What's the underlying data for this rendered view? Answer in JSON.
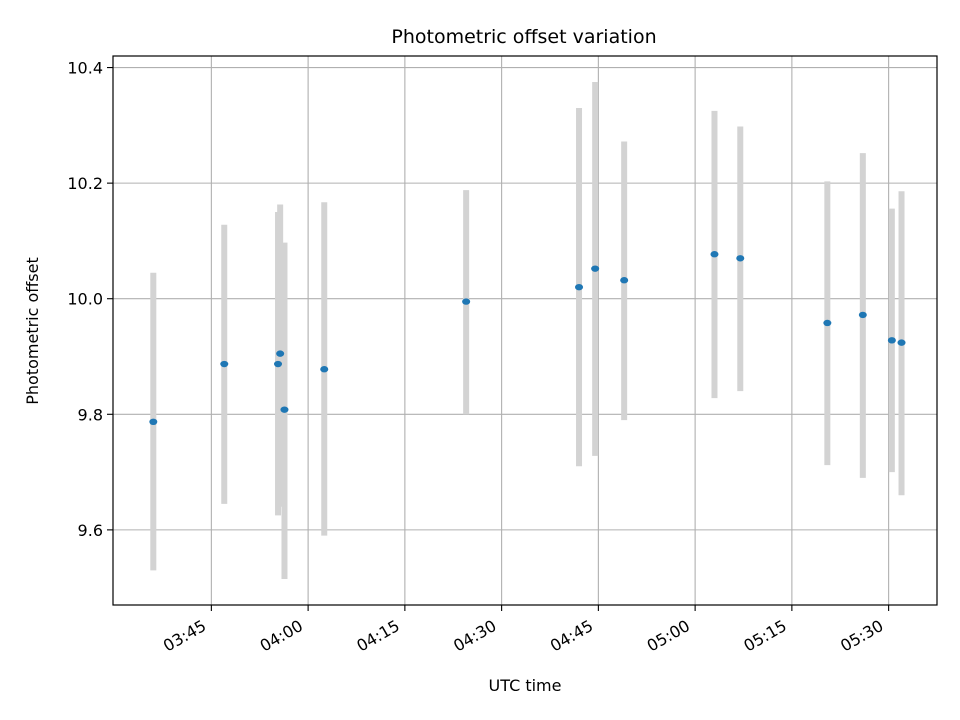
{
  "chart_data": {
    "type": "scatter",
    "title": "Photometric offset variation",
    "xlabel": "UTC time",
    "ylabel": "Photometric offset",
    "x_axis_kind": "time",
    "xlim": [
      "03:29:45",
      "05:37:30"
    ],
    "ylim": [
      9.47,
      10.42
    ],
    "x_ticks": [
      "03:45",
      "04:00",
      "04:15",
      "04:30",
      "04:45",
      "05:00",
      "05:15",
      "05:30"
    ],
    "y_ticks": [
      9.6,
      9.8,
      10.0,
      10.2,
      10.4
    ],
    "y_tick_labels": [
      "9.6",
      "9.8",
      "10.0",
      "10.2",
      "10.4"
    ],
    "grid": true,
    "colors": {
      "point": "#1f77b4",
      "errorbar": "#d3d3d3",
      "grid": "#b0b0b0",
      "axes": "#000000"
    },
    "points": [
      {
        "x": "03:36:00",
        "y": 9.787,
        "ylow": 9.53,
        "yhigh": 10.045
      },
      {
        "x": "03:47:00",
        "y": 9.887,
        "ylow": 9.645,
        "yhigh": 10.128
      },
      {
        "x": "03:55:20",
        "y": 9.887,
        "ylow": 9.625,
        "yhigh": 10.15
      },
      {
        "x": "03:55:40",
        "y": 9.905,
        "ylow": 9.64,
        "yhigh": 10.163
      },
      {
        "x": "03:56:20",
        "y": 9.808,
        "ylow": 9.515,
        "yhigh": 10.097
      },
      {
        "x": "04:02:30",
        "y": 9.878,
        "ylow": 9.59,
        "yhigh": 10.167
      },
      {
        "x": "04:24:30",
        "y": 9.995,
        "ylow": 9.8,
        "yhigh": 10.188
      },
      {
        "x": "04:42:00",
        "y": 10.02,
        "ylow": 9.71,
        "yhigh": 10.33
      },
      {
        "x": "04:44:30",
        "y": 10.052,
        "ylow": 9.728,
        "yhigh": 10.375
      },
      {
        "x": "04:49:00",
        "y": 10.032,
        "ylow": 9.79,
        "yhigh": 10.272
      },
      {
        "x": "05:03:00",
        "y": 10.077,
        "ylow": 9.828,
        "yhigh": 10.325
      },
      {
        "x": "05:07:00",
        "y": 10.07,
        "ylow": 9.84,
        "yhigh": 10.298
      },
      {
        "x": "05:20:30",
        "y": 9.958,
        "ylow": 9.712,
        "yhigh": 10.203
      },
      {
        "x": "05:26:00",
        "y": 9.972,
        "ylow": 9.69,
        "yhigh": 10.252
      },
      {
        "x": "05:30:30",
        "y": 9.928,
        "ylow": 9.7,
        "yhigh": 10.156
      },
      {
        "x": "05:32:00",
        "y": 9.924,
        "ylow": 9.66,
        "yhigh": 10.186
      }
    ]
  }
}
